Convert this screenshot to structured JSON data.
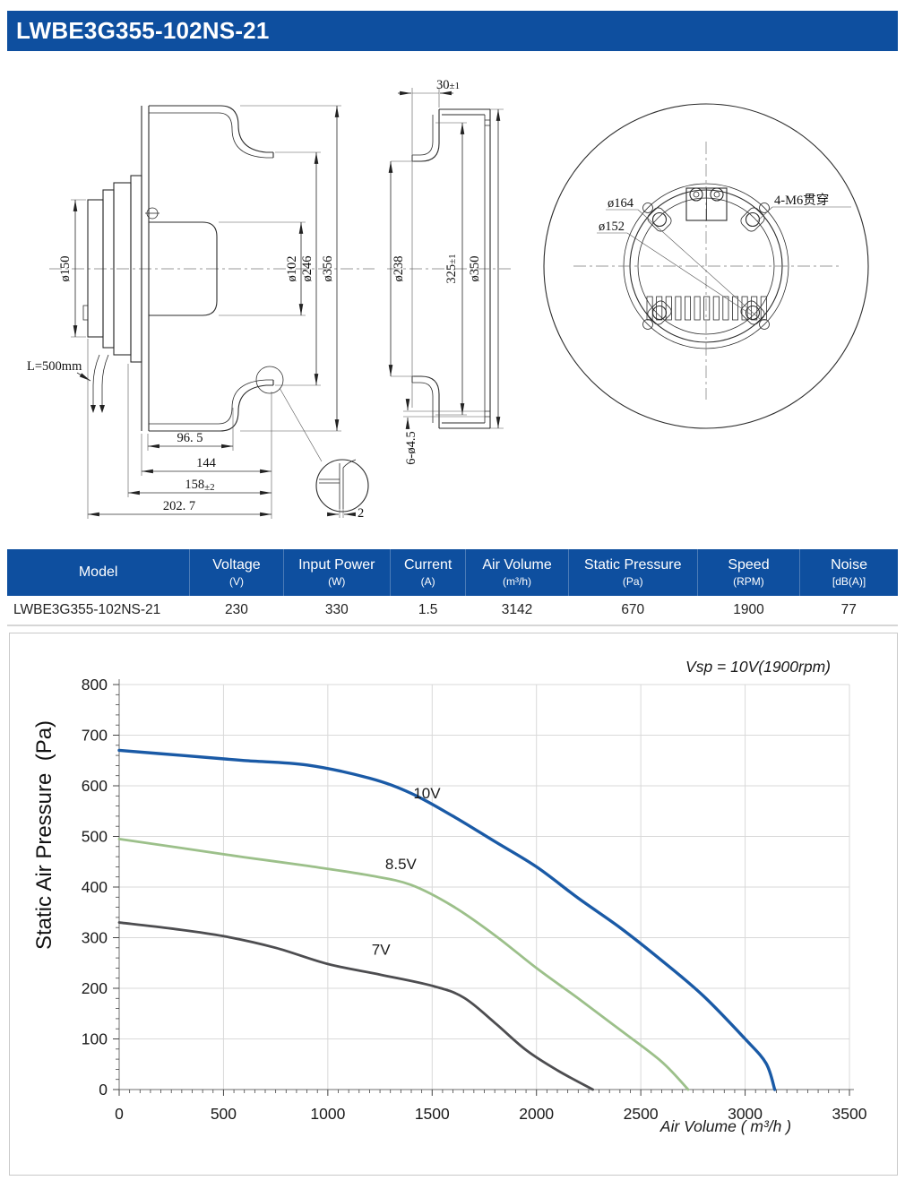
{
  "theme": {
    "brand": "#0e4f9f",
    "on_brand": "#ffffff",
    "grid": "#d9d9d9",
    "axis": "#8a8a8a",
    "tick": "#444444",
    "border": "#c9c9c9"
  },
  "header": {
    "title": "LWBE3G355-102NS-21"
  },
  "drawings": {
    "left": {
      "dia150": "ø150",
      "dia102": "ø102",
      "dia246": "ø246",
      "dia356": "ø356",
      "w965": "96. 5",
      "w144": "144",
      "w158": "158",
      "w158tol": "±2",
      "w2027": "202. 7",
      "wire": "L=500mm",
      "thickness": "2"
    },
    "middle": {
      "d30": "30",
      "d30tol": "±1",
      "dia238": "ø238",
      "h325": "325",
      "h325tol": "±1",
      "dia350": "ø350",
      "holes": "6-ø4.5"
    },
    "right": {
      "dia164": "ø164",
      "dia152": "ø152",
      "screws": "4-M6贯穿"
    }
  },
  "table": {
    "columns": [
      {
        "label": "Model",
        "unit": ""
      },
      {
        "label": "Voltage",
        "unit": "(V)"
      },
      {
        "label": "Input Power",
        "unit": "(W)"
      },
      {
        "label": "Current",
        "unit": "(A)"
      },
      {
        "label": "Air Volume",
        "unit": "(m³/h)"
      },
      {
        "label": "Static Pressure",
        "unit": "(Pa)"
      },
      {
        "label": "Speed",
        "unit": "(RPM)"
      },
      {
        "label": "Noise",
        "unit": "[dB(A)]"
      }
    ],
    "rows": [
      [
        "LWBE3G355-102NS-21",
        "230",
        "330",
        "1.5",
        "3142",
        "670",
        "1900",
        "77"
      ]
    ]
  },
  "chart_data": {
    "type": "line",
    "title": "Vsp = 10V(1900rpm)",
    "xlabel": "Air Volume ( m³/h )",
    "ylabel": "Static Air Pressure  (Pa)",
    "xlim": [
      0,
      3500
    ],
    "ylim": [
      0,
      800
    ],
    "xticks": [
      0,
      500,
      1000,
      1500,
      2000,
      2500,
      3000,
      3500
    ],
    "yticks": [
      0,
      100,
      200,
      300,
      400,
      500,
      600,
      700,
      800
    ],
    "x_minor_step": 50,
    "y_minor_step": 20,
    "grid": true,
    "legend": "inline-labels",
    "series": [
      {
        "name": "10V",
        "color": "#1a5aa6",
        "width": 3.4,
        "label_at": [
          1410,
          575
        ],
        "points": [
          [
            0,
            670
          ],
          [
            300,
            660
          ],
          [
            600,
            650
          ],
          [
            900,
            641
          ],
          [
            1200,
            615
          ],
          [
            1400,
            585
          ],
          [
            1600,
            540
          ],
          [
            1800,
            490
          ],
          [
            2000,
            440
          ],
          [
            2200,
            378
          ],
          [
            2400,
            320
          ],
          [
            2600,
            255
          ],
          [
            2800,
            185
          ],
          [
            3000,
            100
          ],
          [
            3100,
            52
          ],
          [
            3142,
            0
          ]
        ]
      },
      {
        "name": "8.5V",
        "color": "#9cc08a",
        "width": 2.8,
        "label_at": [
          1275,
          435
        ],
        "points": [
          [
            0,
            495
          ],
          [
            300,
            477
          ],
          [
            600,
            459
          ],
          [
            900,
            442
          ],
          [
            1200,
            423
          ],
          [
            1400,
            404
          ],
          [
            1600,
            362
          ],
          [
            1800,
            305
          ],
          [
            2000,
            240
          ],
          [
            2200,
            180
          ],
          [
            2400,
            118
          ],
          [
            2600,
            55
          ],
          [
            2727,
            0
          ]
        ]
      },
      {
        "name": "7V",
        "color": "#4d4d50",
        "width": 2.8,
        "label_at": [
          1210,
          266
        ],
        "points": [
          [
            0,
            330
          ],
          [
            250,
            318
          ],
          [
            500,
            303
          ],
          [
            750,
            280
          ],
          [
            1000,
            248
          ],
          [
            1250,
            227
          ],
          [
            1500,
            205
          ],
          [
            1650,
            182
          ],
          [
            1800,
            132
          ],
          [
            1950,
            78
          ],
          [
            2100,
            38
          ],
          [
            2270,
            0
          ]
        ]
      }
    ]
  }
}
